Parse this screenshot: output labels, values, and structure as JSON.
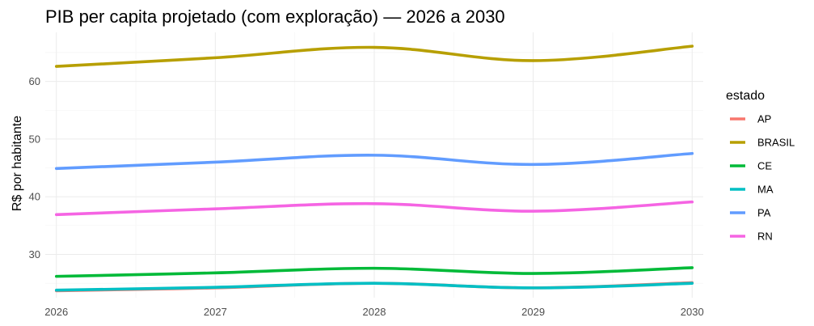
{
  "chart_data": {
    "type": "line",
    "title": "PIB per capita projetado (com exploração) — 2026 a 2030",
    "xlabel": "",
    "ylabel": "R$ por habitante",
    "x": [
      2026,
      2027,
      2028,
      2029,
      2030
    ],
    "x_ticks": [
      "2026",
      "2027",
      "2028",
      "2029",
      "2030"
    ],
    "y_ticks": [
      "30",
      "40",
      "50",
      "60"
    ],
    "ylim": [
      22.5,
      68.5
    ],
    "xlim": [
      2025.93,
      2030.07
    ],
    "grid": true,
    "legend": {
      "title": "estado",
      "position": "right"
    },
    "series": [
      {
        "name": "AP",
        "color": "#F8766D",
        "values": [
          23.7,
          24.2,
          25.0,
          24.2,
          25.1
        ]
      },
      {
        "name": "BRASIL",
        "color": "#B79F00",
        "values": [
          62.6,
          64.1,
          65.9,
          63.6,
          66.1
        ]
      },
      {
        "name": "CE",
        "color": "#00BA38",
        "values": [
          26.2,
          26.8,
          27.6,
          26.7,
          27.7
        ]
      },
      {
        "name": "MA",
        "color": "#00BFC4",
        "values": [
          23.8,
          24.3,
          25.0,
          24.2,
          25.0
        ]
      },
      {
        "name": "PA",
        "color": "#619CFF",
        "values": [
          44.9,
          46.0,
          47.2,
          45.6,
          47.5
        ]
      },
      {
        "name": "RN",
        "color": "#F564E3",
        "values": [
          36.9,
          37.9,
          38.8,
          37.5,
          39.1
        ]
      }
    ]
  }
}
